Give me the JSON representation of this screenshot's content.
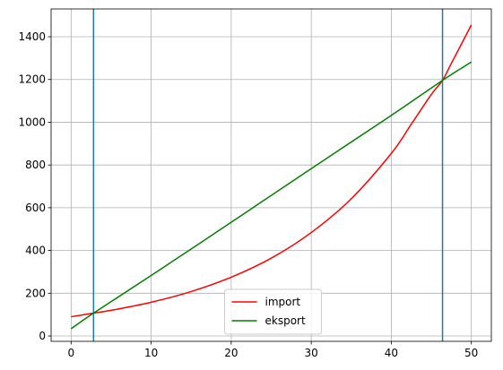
{
  "chart_data": {
    "type": "line",
    "title": "",
    "xlabel": "",
    "ylabel": "",
    "xlim": [
      -2.5,
      52.5
    ],
    "ylim": [
      -25,
      1530
    ],
    "grid": true,
    "legend_position": "bottom-center",
    "x_ticks": [
      0,
      10,
      20,
      30,
      40,
      50
    ],
    "y_ticks": [
      0,
      200,
      400,
      600,
      800,
      1000,
      1200,
      1400
    ],
    "x_tick_labels": [
      "0",
      "10",
      "20",
      "30",
      "40",
      "50"
    ],
    "y_tick_labels": [
      "0",
      "200",
      "400",
      "600",
      "800",
      "1000",
      "1200",
      "1400"
    ],
    "series": [
      {
        "name": "import",
        "color": "#ff0000",
        "x": [
          0,
          2.8,
          5,
          10,
          15,
          20,
          25,
          30,
          35,
          40,
          42.5,
          45,
          46.4,
          47.5,
          50
        ],
        "y": [
          90,
          107,
          120,
          158,
          208,
          275,
          364,
          484,
          642,
          854,
          991,
          1130,
          1196,
          1275,
          1455
        ]
      },
      {
        "name": "eksport",
        "color": "#008000",
        "x": [
          0,
          2.8,
          10,
          20,
          30,
          40,
          46.4,
          50
        ],
        "y": [
          34,
          107,
          283,
          532,
          783,
          1032,
          1196,
          1282
        ]
      }
    ],
    "vlines": [
      {
        "x": 2.8,
        "color": "#1f77b4"
      },
      {
        "x": 46.4,
        "color": "#1f77b4"
      }
    ]
  }
}
